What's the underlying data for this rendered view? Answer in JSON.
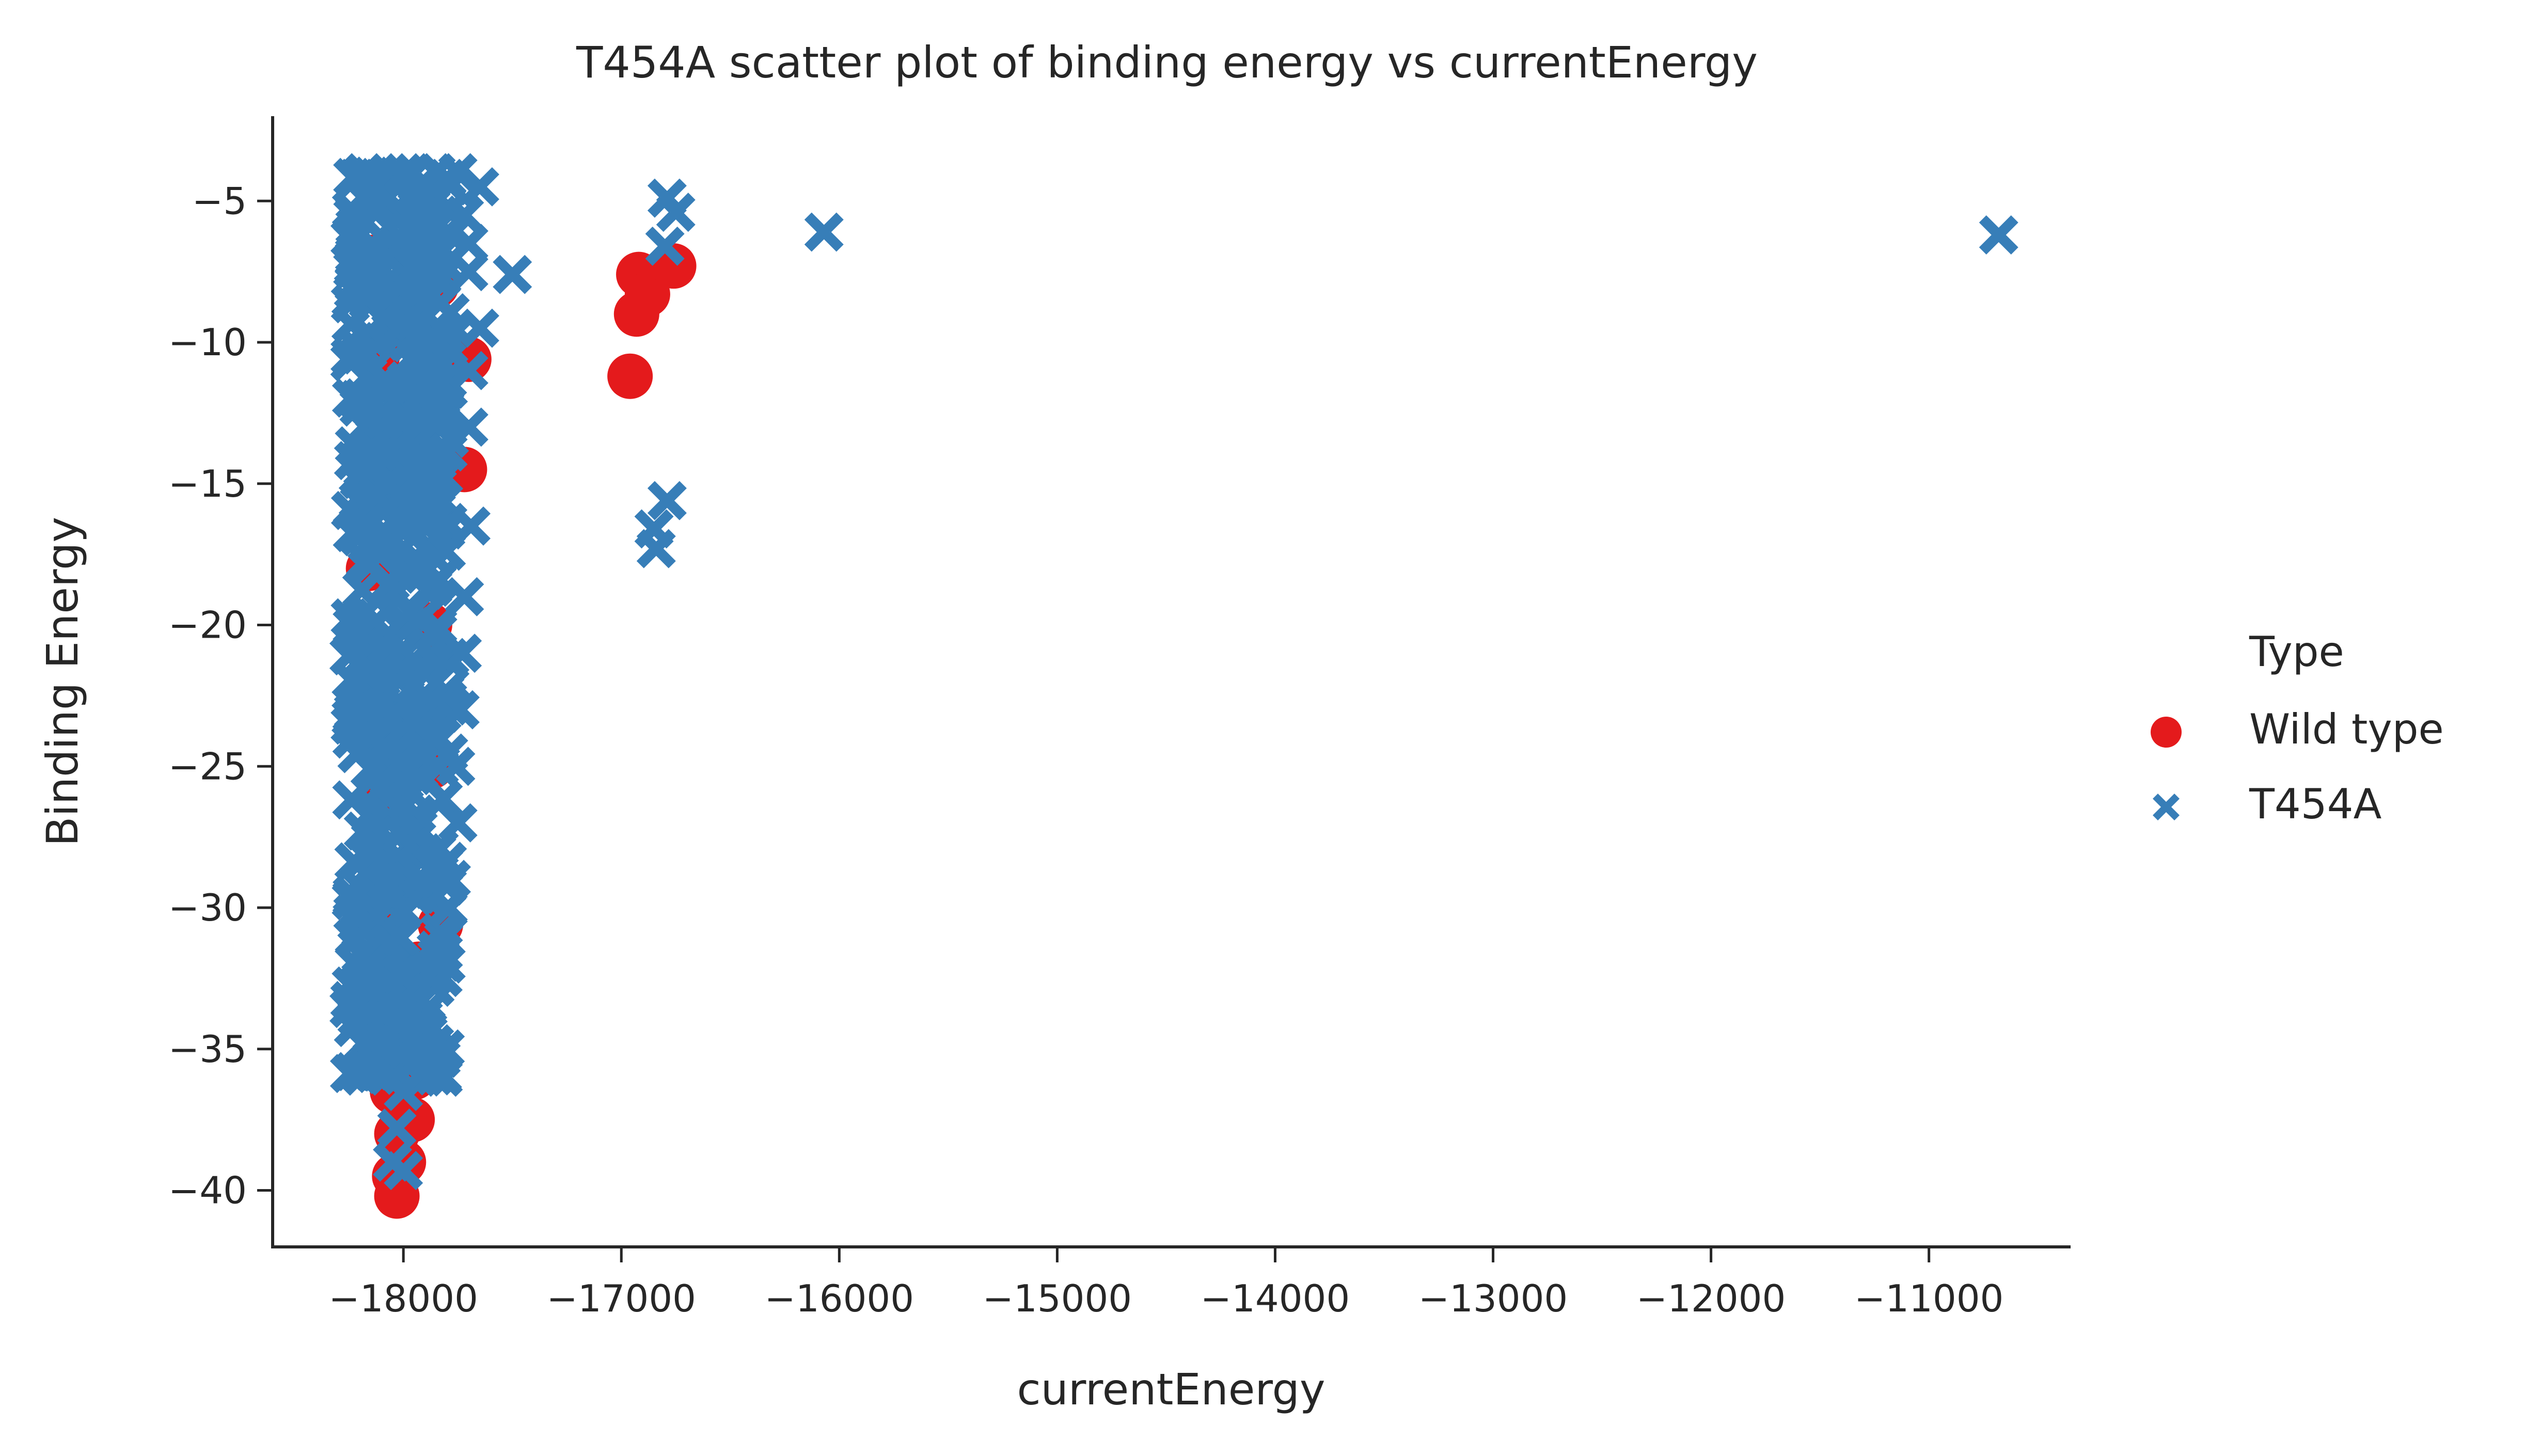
{
  "chart_data": {
    "type": "scatter",
    "title": "T454A scatter plot of binding energy vs currentEnergy",
    "xlabel": "currentEnergy",
    "ylabel": "Binding Energy",
    "xlim": [
      -18600,
      -10350
    ],
    "ylim": [
      -42,
      -2
    ],
    "xticks": [
      -18000,
      -17000,
      -16000,
      -15000,
      -14000,
      -13000,
      -12000,
      -11000
    ],
    "xtick_labels": [
      "−18000",
      "−17000",
      "−16000",
      "−15000",
      "−14000",
      "−13000",
      "−12000",
      "−11000"
    ],
    "yticks": [
      -5,
      -10,
      -15,
      -20,
      -25,
      -30,
      -35,
      -40
    ],
    "ytick_labels": [
      "−5",
      "−10",
      "−15",
      "−20",
      "−25",
      "−30",
      "−35",
      "−40"
    ],
    "grid": false,
    "legend": {
      "title": "Type",
      "placement": "right"
    },
    "series": [
      {
        "name": "Wild type",
        "marker": "circle",
        "color": "#e41a1c",
        "points": [
          [
            -18150,
            -7
          ],
          [
            -18120,
            -10.5
          ],
          [
            -18140,
            -14
          ],
          [
            -18160,
            -18
          ],
          [
            -18130,
            -22
          ],
          [
            -18110,
            -26
          ],
          [
            -18150,
            -30
          ],
          [
            -18100,
            -33
          ],
          [
            -18080,
            -35
          ],
          [
            -18050,
            -36.5
          ],
          [
            -18030,
            -38
          ],
          [
            -18040,
            -39.5
          ],
          [
            -18030,
            -40.2
          ],
          [
            -18000,
            -39
          ],
          [
            -17960,
            -37.5
          ],
          [
            -17950,
            -36
          ],
          [
            -17940,
            -34
          ],
          [
            -17930,
            -32
          ],
          [
            -17830,
            -30.6
          ],
          [
            -17720,
            -14.5
          ],
          [
            -17700,
            -10.6
          ],
          [
            -17850,
            -8
          ],
          [
            -17900,
            -12
          ],
          [
            -17880,
            -20
          ],
          [
            -17870,
            -25
          ],
          [
            -16960,
            -11.2
          ],
          [
            -16930,
            -9
          ],
          [
            -16920,
            -7.6
          ],
          [
            -16880,
            -8.3
          ],
          [
            -16760,
            -7.3
          ]
        ]
      },
      {
        "name": "T454A",
        "marker": "x",
        "color": "#377eb8",
        "points": [
          [
            -18180,
            -4
          ],
          [
            -18100,
            -4.2
          ],
          [
            -18000,
            -4
          ],
          [
            -17950,
            -4
          ],
          [
            -17900,
            -4.5
          ],
          [
            -17850,
            -4
          ],
          [
            -17800,
            -4.2
          ],
          [
            -17750,
            -4
          ],
          [
            -17650,
            -4.5
          ],
          [
            -17720,
            -5.5
          ],
          [
            -17700,
            -6.5
          ],
          [
            -17700,
            -7.5
          ],
          [
            -17500,
            -7.6
          ],
          [
            -17650,
            -9.5
          ],
          [
            -17700,
            -11
          ],
          [
            -17700,
            -13
          ],
          [
            -17690,
            -16.5
          ],
          [
            -17720,
            -19
          ],
          [
            -17730,
            -21
          ],
          [
            -17740,
            -23
          ],
          [
            -17760,
            -25
          ],
          [
            -17750,
            -27
          ],
          [
            -17780,
            -29
          ],
          [
            -18000,
            -34
          ],
          [
            -18100,
            -35
          ],
          [
            -18200,
            -35.8
          ],
          [
            -18000,
            -36.5
          ],
          [
            -18030,
            -37.8
          ],
          [
            -18050,
            -39
          ],
          [
            -18000,
            -39.3
          ],
          [
            -16790,
            -4.9
          ],
          [
            -16750,
            -5.4
          ],
          [
            -16800,
            -6.6
          ],
          [
            -16790,
            -15.6
          ],
          [
            -16850,
            -16.6
          ],
          [
            -16840,
            -17.3
          ],
          [
            -16070,
            -6.1
          ],
          [
            -10680,
            -6.2
          ]
        ]
      }
    ],
    "dense_column": {
      "series": "T454A",
      "x_range": [
        -18250,
        -17780
      ],
      "y_range": [
        -36,
        -4
      ]
    }
  }
}
